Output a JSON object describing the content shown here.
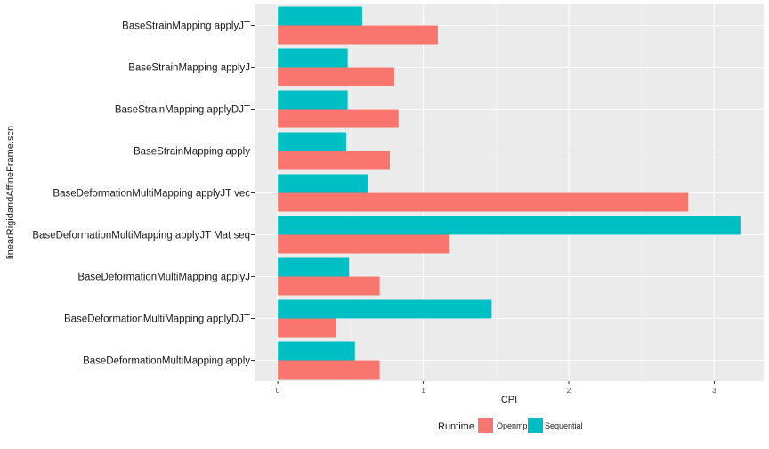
{
  "chart_data": {
    "type": "bar",
    "orientation": "horizontal",
    "xlabel": "CPI",
    "ylabel": "linearRigidandAffineFrame.scn",
    "xlim": [
      -0.16,
      3.34
    ],
    "xticks": [
      0,
      1,
      2,
      3
    ],
    "grid": true,
    "legend_position": "bottom",
    "legend_title": "Runtime",
    "categories": [
      "BaseStrainMapping applyJT",
      "BaseStrainMapping applyJ",
      "BaseStrainMapping applyDJT",
      "BaseStrainMapping apply",
      "BaseDeformationMultiMapping applyJT vec",
      "BaseDeformationMultiMapping applyJT Mat seq",
      "BaseDeformationMultiMapping applyJ",
      "BaseDeformationMultiMapping applyDJT",
      "BaseDeformationMultiMapping apply"
    ],
    "series": [
      {
        "name": "Openmp",
        "color": "#F8766D",
        "values": [
          1.1,
          0.8,
          0.83,
          0.77,
          2.82,
          1.18,
          0.7,
          0.4,
          0.7
        ]
      },
      {
        "name": "Sequential",
        "color": "#00BFC4",
        "values": [
          0.58,
          0.48,
          0.48,
          0.47,
          0.62,
          3.18,
          0.49,
          1.47,
          0.53
        ]
      }
    ]
  }
}
